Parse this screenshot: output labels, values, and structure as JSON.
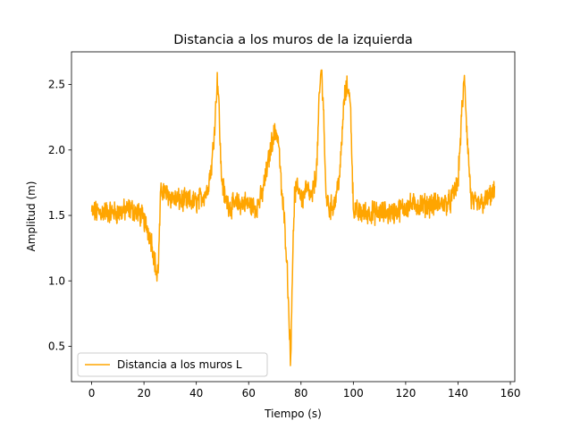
{
  "chart_data": {
    "type": "line",
    "title": "Distancia a los muros de la izquierda",
    "xlabel": "Tiempo (s)",
    "ylabel": "Amplitud (m)",
    "xlim": [
      -7.7,
      161.7
    ],
    "ylim": [
      0.23,
      2.75
    ],
    "xticks": [
      0,
      20,
      40,
      60,
      80,
      100,
      120,
      140,
      160
    ],
    "xtick_labels": [
      "0",
      "20",
      "40",
      "60",
      "80",
      "100",
      "120",
      "140",
      "160"
    ],
    "yticks": [
      0.5,
      1.0,
      1.5,
      2.0,
      2.5
    ],
    "ytick_labels": [
      "0.5",
      "1.0",
      "1.5",
      "2.0",
      "2.5"
    ],
    "grid": false,
    "legend_position": "lower-left",
    "series": [
      {
        "name": "Distancia a los muros L",
        "color": "#ffa500",
        "noise_amplitude": 0.07,
        "x": [
          0,
          5,
          10,
          15,
          19,
          21,
          23,
          24.5,
          25,
          25.5,
          26.5,
          28,
          32,
          40,
          44,
          46,
          47.5,
          48,
          48.5,
          49.5,
          51,
          53,
          58,
          63,
          65,
          67,
          69,
          70.5,
          71.5,
          72.5,
          73.5,
          74.5,
          75.5,
          76,
          76.5,
          77.5,
          79,
          80.5,
          82,
          84,
          86,
          87,
          87.7,
          88.5,
          89.5,
          91,
          93,
          95,
          96.5,
          98,
          99,
          100,
          102,
          108,
          115,
          122,
          130,
          137,
          140,
          141.5,
          142.5,
          143.5,
          145,
          147,
          150,
          154
        ],
        "y": [
          1.52,
          1.53,
          1.52,
          1.55,
          1.5,
          1.42,
          1.3,
          1.1,
          1.02,
          1.12,
          1.72,
          1.67,
          1.62,
          1.6,
          1.68,
          1.9,
          2.35,
          2.55,
          2.42,
          1.82,
          1.62,
          1.57,
          1.6,
          1.56,
          1.65,
          1.85,
          2.08,
          2.15,
          2.05,
          1.7,
          1.5,
          1.2,
          0.7,
          0.34,
          0.9,
          1.65,
          1.72,
          1.62,
          1.72,
          1.62,
          1.85,
          2.4,
          2.62,
          2.4,
          1.65,
          1.55,
          1.6,
          1.85,
          2.4,
          2.5,
          2.3,
          1.55,
          1.52,
          1.52,
          1.52,
          1.58,
          1.58,
          1.6,
          1.75,
          2.3,
          2.55,
          2.1,
          1.62,
          1.58,
          1.6,
          1.68
        ]
      }
    ]
  }
}
